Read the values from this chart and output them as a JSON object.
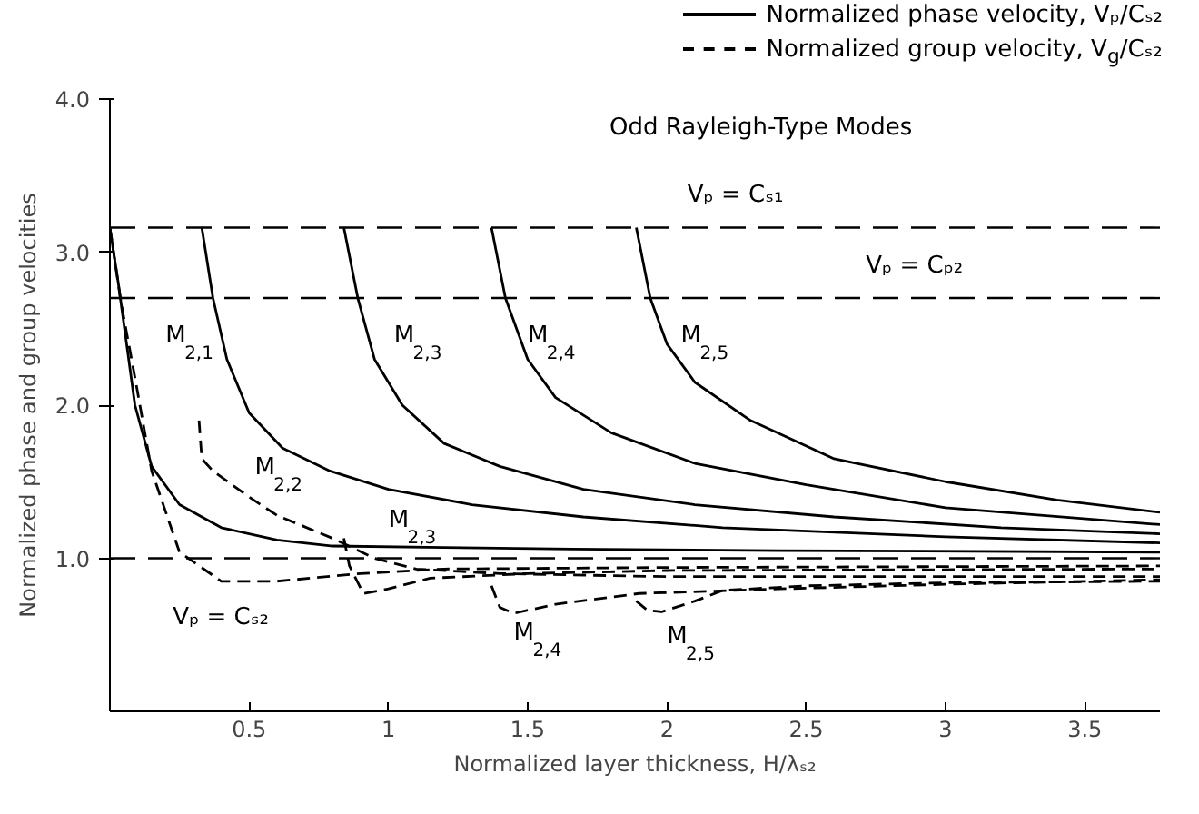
{
  "chart_data": {
    "type": "line",
    "title": "Odd Rayleigh-Type Modes",
    "xlabel": "Normalized layer thickness, H/λₛ₂",
    "ylabel": "Normalized phase and group velocities",
    "xlim": [
      0,
      3.77
    ],
    "ylim": [
      0,
      4.0
    ],
    "xticks": [
      0.5,
      1.0,
      1.5,
      2.0,
      2.5,
      3.0,
      3.5
    ],
    "yticks": [
      {
        "value": 1.0,
        "label": "1.0"
      },
      {
        "value": 2.0,
        "label": "2.0"
      },
      {
        "value": 3.0,
        "label": "3.0"
      },
      {
        "value": 4.0,
        "label": "4.0"
      }
    ],
    "grid": false,
    "legend": "top right",
    "color": "#000000",
    "series": [
      {
        "name": "Normalized phase velocity, Vₚ/Cₛ₂",
        "line_style": "solid",
        "x": [
          0,
          0.03,
          0.06,
          0.09,
          0.15,
          0.25,
          0.4,
          0.6,
          0.8,
          1.2,
          1.66,
          2.4,
          3.77
        ],
        "values": [
          3.16,
          2.8,
          2.4,
          2.0,
          1.6,
          1.35,
          1.2,
          1.12,
          1.08,
          1.07,
          1.06,
          1.05,
          1.04
        ]
      },
      {
        "line_style": "solid",
        "x": [
          0.33,
          0.37,
          0.42,
          0.5,
          0.62,
          0.79,
          1.0,
          1.3,
          1.7,
          2.2,
          3.0,
          3.77
        ],
        "values": [
          3.16,
          2.7,
          2.3,
          1.95,
          1.72,
          1.57,
          1.45,
          1.35,
          1.27,
          1.2,
          1.14,
          1.1
        ]
      },
      {
        "line_style": "solid",
        "x": [
          0.84,
          0.89,
          0.95,
          1.05,
          1.2,
          1.4,
          1.7,
          2.1,
          2.6,
          3.2,
          3.77
        ],
        "values": [
          3.16,
          2.7,
          2.3,
          2.0,
          1.75,
          1.6,
          1.45,
          1.35,
          1.27,
          1.2,
          1.16
        ]
      },
      {
        "line_style": "solid",
        "x": [
          1.37,
          1.42,
          1.5,
          1.6,
          1.8,
          2.1,
          2.5,
          3.0,
          3.77
        ],
        "values": [
          3.16,
          2.7,
          2.3,
          2.05,
          1.82,
          1.62,
          1.48,
          1.33,
          1.22
        ]
      },
      {
        "line_style": "solid",
        "x": [
          1.89,
          1.94,
          2.0,
          2.1,
          2.3,
          2.6,
          3.0,
          3.4,
          3.77
        ],
        "values": [
          3.16,
          2.7,
          2.4,
          2.15,
          1.9,
          1.65,
          1.5,
          1.38,
          1.3
        ]
      },
      {
        "name": "Normalized group velocity, V$_{g}$/Cₛ₂",
        "line_style": "dashed",
        "x": [
          0,
          0.04,
          0.09,
          0.15,
          0.25,
          0.4,
          0.6,
          0.9,
          1.2,
          2.0,
          3.77
        ],
        "values": [
          3.16,
          2.67,
          2.18,
          1.57,
          1.04,
          0.85,
          0.85,
          0.9,
          0.93,
          0.94,
          0.95
        ]
      },
      {
        "line_style": "dashed",
        "x": [
          0.32,
          0.33,
          0.37,
          0.5,
          0.6,
          0.8,
          0.95,
          1.1,
          1.4,
          2.0,
          3.77
        ],
        "values": [
          1.9,
          1.65,
          1.57,
          1.4,
          1.28,
          1.13,
          1.0,
          0.93,
          0.9,
          0.88,
          0.88
        ]
      },
      {
        "line_style": "dashed",
        "x": [
          0.84,
          0.86,
          0.91,
          1.0,
          1.15,
          1.5,
          2.0,
          3.77
        ],
        "values": [
          1.13,
          0.95,
          0.77,
          0.8,
          0.87,
          0.9,
          0.92,
          0.93
        ]
      },
      {
        "line_style": "dashed",
        "x": [
          1.37,
          1.4,
          1.45,
          1.6,
          1.9,
          2.4,
          3.0,
          3.77
        ],
        "values": [
          0.82,
          0.68,
          0.64,
          0.7,
          0.77,
          0.8,
          0.83,
          0.86
        ]
      },
      {
        "line_style": "dashed",
        "x": [
          1.89,
          1.93,
          1.98,
          2.1,
          2.2,
          2.5,
          3.0,
          3.77
        ],
        "values": [
          0.72,
          0.66,
          0.65,
          0.72,
          0.79,
          0.82,
          0.84,
          0.85
        ]
      }
    ],
    "ref_lines": [
      {
        "axis": "y",
        "value": 3.16,
        "label": "Vₚ = Cₛ₁",
        "line_style": "dashed"
      },
      {
        "axis": "y",
        "value": 2.7,
        "label": "Vₚ = Cₚ₂",
        "line_style": "dashed"
      },
      {
        "axis": "y",
        "value": 1.0,
        "label": "Vₚ = Cₛ₂",
        "line_style": "dashed"
      }
    ],
    "annotations": [
      "M$_{2,1}$",
      "M$_{2,3}$",
      "M$_{2,4}$",
      "M$_{2,5}$",
      "M$_{2,2}$",
      "M$_{2,3}$",
      "M$_{2,4}$",
      "M$_{2,5}$"
    ]
  }
}
